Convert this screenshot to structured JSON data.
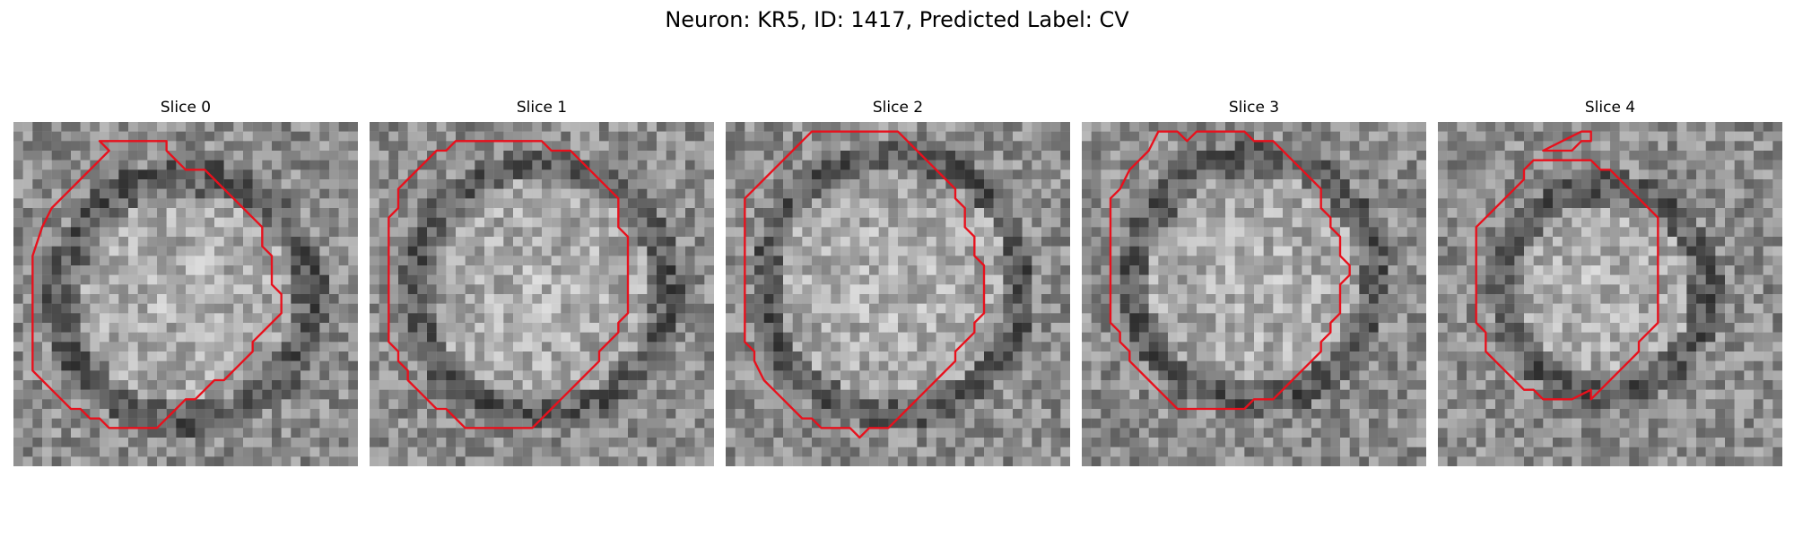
{
  "figure": {
    "title": "Neuron: KR5, ID: 1417, Predicted Label: CV"
  },
  "slices": [
    {
      "label": "Slice 0",
      "contour": [
        [
          11,
          2
        ],
        [
          16,
          2
        ],
        [
          16,
          3
        ],
        [
          17,
          4
        ],
        [
          18,
          5
        ],
        [
          20,
          5
        ],
        [
          21,
          6
        ],
        [
          22,
          7
        ],
        [
          23,
          8
        ],
        [
          24,
          9
        ],
        [
          25,
          10
        ],
        [
          26,
          11
        ],
        [
          26,
          13
        ],
        [
          27,
          14
        ],
        [
          27,
          16
        ],
        [
          27,
          17
        ],
        [
          28,
          18
        ],
        [
          28,
          20
        ],
        [
          27,
          21
        ],
        [
          26,
          22
        ],
        [
          25,
          23
        ],
        [
          25,
          24
        ],
        [
          24,
          25
        ],
        [
          23,
          26
        ],
        [
          22,
          27
        ],
        [
          21,
          27
        ],
        [
          20,
          28
        ],
        [
          19,
          29
        ],
        [
          18,
          29
        ],
        [
          17,
          30
        ],
        [
          16,
          31
        ],
        [
          15,
          32
        ],
        [
          12,
          32
        ],
        [
          11,
          32
        ],
        [
          10,
          32
        ],
        [
          9,
          31
        ],
        [
          8,
          31
        ],
        [
          7,
          30
        ],
        [
          6,
          30
        ],
        [
          5,
          29
        ],
        [
          4,
          28
        ],
        [
          3,
          27
        ],
        [
          2,
          26
        ],
        [
          2,
          24
        ],
        [
          2,
          14
        ],
        [
          3,
          11
        ],
        [
          4,
          9
        ],
        [
          5,
          8
        ],
        [
          6,
          7
        ],
        [
          7,
          6
        ],
        [
          8,
          5
        ],
        [
          9,
          4
        ],
        [
          10,
          3
        ],
        [
          9,
          2
        ],
        [
          9,
          2
        ],
        [
          10,
          2
        ]
      ],
      "contour2": []
    },
    {
      "label": "Slice 1",
      "contour": [
        [
          9,
          2
        ],
        [
          18,
          2
        ],
        [
          19,
          3
        ],
        [
          21,
          3
        ],
        [
          22,
          4
        ],
        [
          23,
          5
        ],
        [
          24,
          6
        ],
        [
          25,
          7
        ],
        [
          26,
          8
        ],
        [
          26,
          11
        ],
        [
          27,
          12
        ],
        [
          27,
          13
        ],
        [
          27,
          20
        ],
        [
          26,
          21
        ],
        [
          26,
          22
        ],
        [
          25,
          23
        ],
        [
          24,
          24
        ],
        [
          24,
          25
        ],
        [
          23,
          26
        ],
        [
          22,
          27
        ],
        [
          21,
          28
        ],
        [
          20,
          29
        ],
        [
          19,
          30
        ],
        [
          18,
          31
        ],
        [
          17,
          32
        ],
        [
          12,
          32
        ],
        [
          10,
          32
        ],
        [
          9,
          31
        ],
        [
          8,
          30
        ],
        [
          7,
          30
        ],
        [
          6,
          29
        ],
        [
          5,
          28
        ],
        [
          4,
          27
        ],
        [
          4,
          26
        ],
        [
          3,
          25
        ],
        [
          3,
          24
        ],
        [
          2,
          23
        ],
        [
          2,
          20
        ],
        [
          2,
          14
        ],
        [
          2,
          11
        ],
        [
          2,
          10
        ],
        [
          3,
          9
        ],
        [
          3,
          7
        ],
        [
          4,
          6
        ],
        [
          5,
          5
        ],
        [
          6,
          4
        ],
        [
          7,
          3
        ],
        [
          8,
          3
        ]
      ],
      "contour2": []
    },
    {
      "label": "Slice 2",
      "contour": [
        [
          9,
          1
        ],
        [
          18,
          1
        ],
        [
          19,
          2
        ],
        [
          20,
          3
        ],
        [
          21,
          4
        ],
        [
          22,
          5
        ],
        [
          23,
          6
        ],
        [
          24,
          7
        ],
        [
          24,
          8
        ],
        [
          25,
          9
        ],
        [
          25,
          11
        ],
        [
          26,
          12
        ],
        [
          26,
          14
        ],
        [
          27,
          15
        ],
        [
          27,
          20
        ],
        [
          26,
          21
        ],
        [
          26,
          22
        ],
        [
          25,
          23
        ],
        [
          24,
          24
        ],
        [
          24,
          25
        ],
        [
          23,
          26
        ],
        [
          22,
          27
        ],
        [
          21,
          28
        ],
        [
          20,
          29
        ],
        [
          19,
          30
        ],
        [
          18,
          31
        ],
        [
          17,
          32
        ],
        [
          15,
          32
        ],
        [
          14,
          33
        ],
        [
          13,
          32
        ],
        [
          10,
          32
        ],
        [
          9,
          31
        ],
        [
          8,
          31
        ],
        [
          7,
          30
        ],
        [
          6,
          29
        ],
        [
          5,
          28
        ],
        [
          4,
          27
        ],
        [
          3,
          25
        ],
        [
          3,
          24
        ],
        [
          2,
          23
        ],
        [
          2,
          21
        ],
        [
          2,
          14
        ],
        [
          2,
          8
        ],
        [
          3,
          7
        ],
        [
          4,
          6
        ],
        [
          5,
          5
        ],
        [
          6,
          4
        ],
        [
          7,
          3
        ],
        [
          8,
          2
        ]
      ],
      "contour2": []
    },
    {
      "label": "Slice 3",
      "contour": [
        [
          8,
          1
        ],
        [
          10,
          1
        ],
        [
          11,
          2
        ],
        [
          12,
          1
        ],
        [
          17,
          1
        ],
        [
          18,
          2
        ],
        [
          20,
          2
        ],
        [
          21,
          3
        ],
        [
          22,
          4
        ],
        [
          23,
          5
        ],
        [
          24,
          6
        ],
        [
          25,
          7
        ],
        [
          25,
          9
        ],
        [
          26,
          10
        ],
        [
          26,
          11
        ],
        [
          27,
          12
        ],
        [
          27,
          14
        ],
        [
          28,
          15
        ],
        [
          28,
          16
        ],
        [
          27,
          17
        ],
        [
          27,
          20
        ],
        [
          26,
          21
        ],
        [
          26,
          22
        ],
        [
          25,
          23
        ],
        [
          25,
          24
        ],
        [
          24,
          25
        ],
        [
          23,
          26
        ],
        [
          22,
          27
        ],
        [
          21,
          28
        ],
        [
          20,
          29
        ],
        [
          18,
          29
        ],
        [
          17,
          30
        ],
        [
          10,
          30
        ],
        [
          9,
          29
        ],
        [
          8,
          28
        ],
        [
          7,
          27
        ],
        [
          6,
          26
        ],
        [
          5,
          25
        ],
        [
          5,
          24
        ],
        [
          4,
          23
        ],
        [
          4,
          22
        ],
        [
          3,
          21
        ],
        [
          3,
          20
        ],
        [
          3,
          8
        ],
        [
          4,
          7
        ],
        [
          5,
          5
        ],
        [
          6,
          4
        ],
        [
          7,
          3
        ]
      ],
      "contour2": []
    },
    {
      "label": "Slice 4",
      "contour": [
        [
          10,
          4
        ],
        [
          16,
          4
        ],
        [
          17,
          5
        ],
        [
          18,
          5
        ],
        [
          19,
          6
        ],
        [
          20,
          7
        ],
        [
          21,
          8
        ],
        [
          22,
          9
        ],
        [
          23,
          10
        ],
        [
          23,
          13
        ],
        [
          23,
          19
        ],
        [
          23,
          21
        ],
        [
          22,
          22
        ],
        [
          21,
          23
        ],
        [
          21,
          24
        ],
        [
          20,
          25
        ],
        [
          19,
          26
        ],
        [
          18,
          27
        ],
        [
          17,
          28
        ],
        [
          16,
          29
        ],
        [
          16,
          28
        ],
        [
          14,
          29
        ],
        [
          11,
          29
        ],
        [
          10,
          28
        ],
        [
          9,
          28
        ],
        [
          8,
          27
        ],
        [
          7,
          26
        ],
        [
          6,
          25
        ],
        [
          5,
          24
        ],
        [
          5,
          22
        ],
        [
          4,
          21
        ],
        [
          4,
          13
        ],
        [
          4,
          11
        ],
        [
          5,
          10
        ],
        [
          6,
          9
        ],
        [
          7,
          8
        ],
        [
          8,
          7
        ],
        [
          9,
          6
        ],
        [
          9,
          5
        ]
      ],
      "contour2": [
        [
          13,
          2
        ],
        [
          15,
          1
        ],
        [
          16,
          1
        ],
        [
          16,
          2
        ],
        [
          15,
          2
        ],
        [
          14,
          3
        ],
        [
          13,
          3
        ],
        [
          11,
          3
        ],
        [
          11,
          3
        ],
        [
          13,
          2
        ]
      ]
    }
  ]
}
